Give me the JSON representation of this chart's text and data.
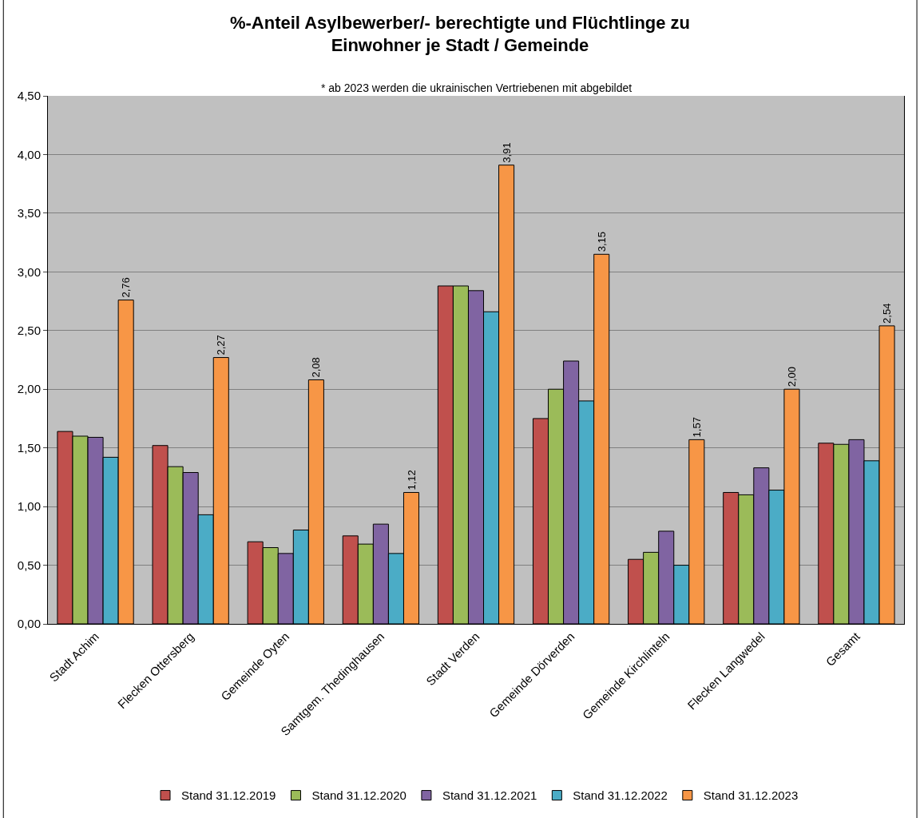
{
  "chart_data": {
    "type": "bar",
    "title": "%-Anteil Asylbewerber/- berechtigte und Flüchtlinge zu Einwohner je Stadt / Gemeinde",
    "subtitle": "* ab 2023 werden die ukrainischen Vertriebenen mit abgebildet",
    "categories": [
      "Stadt Achim",
      "Flecken Ottersberg",
      "Gemeinde Oyten",
      "Samtgem. Thedinghausen",
      "Stadt Verden",
      "Gemeinde Dörverden",
      "Gemeinde Kirchlinteln",
      "Flecken Langwedel",
      "Gesamt"
    ],
    "series": [
      {
        "name": "Stand 31.12.2019",
        "color": "#c0504d",
        "values": [
          1.64,
          1.52,
          0.7,
          0.75,
          2.88,
          1.75,
          0.55,
          1.12,
          1.54
        ]
      },
      {
        "name": "Stand 31.12.2020",
        "color": "#9bbb59",
        "values": [
          1.6,
          1.34,
          0.65,
          0.68,
          2.88,
          2.0,
          0.61,
          1.1,
          1.53
        ]
      },
      {
        "name": "Stand 31.12.2021",
        "color": "#8064a2",
        "values": [
          1.59,
          1.29,
          0.6,
          0.85,
          2.84,
          2.24,
          0.79,
          1.33,
          1.57
        ]
      },
      {
        "name": "Stand 31.12.2022",
        "color": "#4bacc6",
        "values": [
          1.42,
          0.93,
          0.8,
          0.6,
          2.66,
          1.9,
          0.5,
          1.14,
          1.39
        ]
      },
      {
        "name": "Stand 31.12.2023",
        "color": "#f79646",
        "values": [
          2.76,
          2.27,
          2.08,
          1.12,
          3.91,
          3.15,
          1.57,
          2.0,
          2.54
        ],
        "value_labels": [
          "2,76",
          "2,27",
          "2,08",
          "1,12",
          "3,91",
          "3,15",
          "1,57",
          "2,00",
          "2,54"
        ]
      }
    ],
    "ylim": [
      0,
      4.5
    ],
    "yticks": [
      {
        "value": 0,
        "label": "0,00"
      },
      {
        "value": 0.5,
        "label": "0,50"
      },
      {
        "value": 1,
        "label": "1,00"
      },
      {
        "value": 1.5,
        "label": "1,50"
      },
      {
        "value": 2,
        "label": "2,00"
      },
      {
        "value": 2.5,
        "label": "2,50"
      },
      {
        "value": 3,
        "label": "3,00"
      },
      {
        "value": 3.5,
        "label": "3,50"
      },
      {
        "value": 4,
        "label": "4,00"
      },
      {
        "value": 4.5,
        "label": "4,50"
      }
    ],
    "grid": "y",
    "legend": "bottom"
  }
}
